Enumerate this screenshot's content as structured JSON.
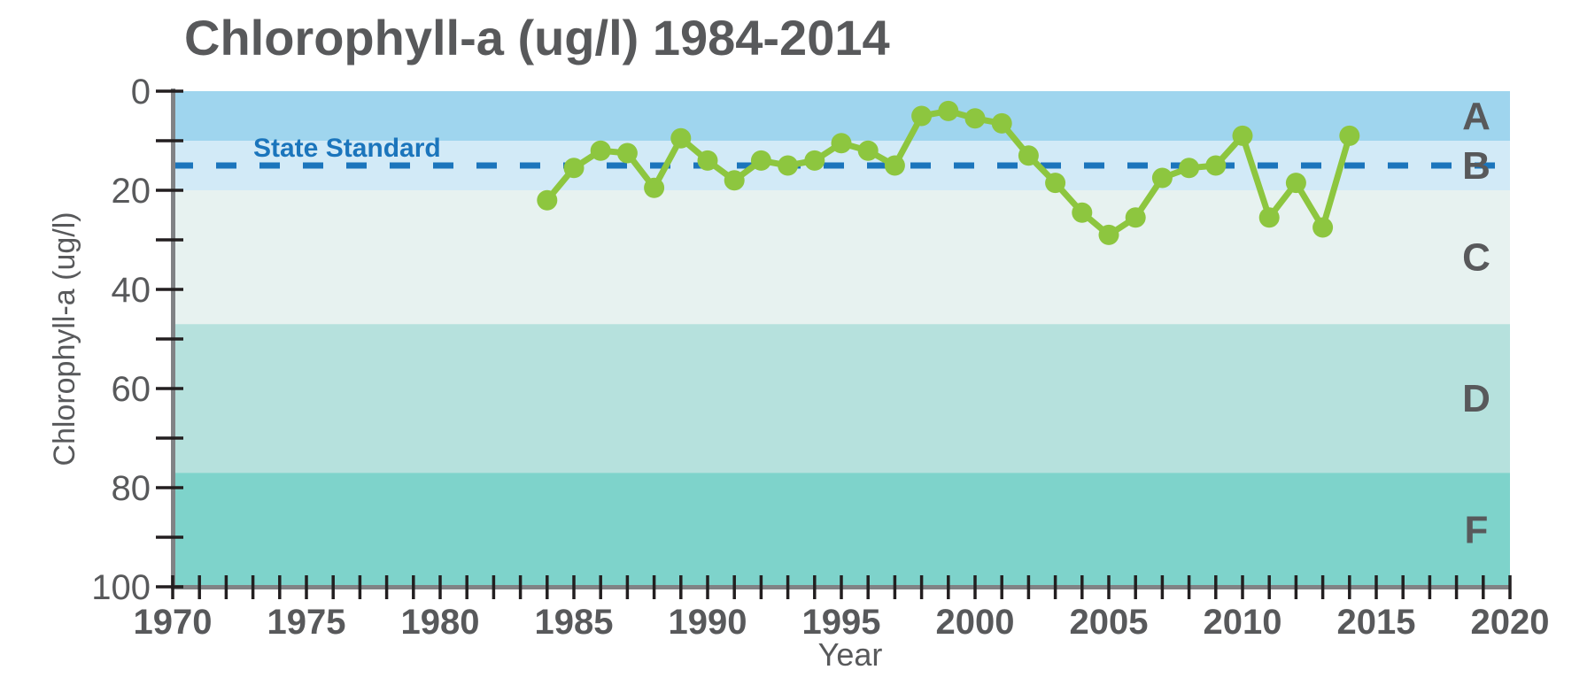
{
  "figure": {
    "background_color": "#ffffff",
    "text_color": "#58595b",
    "axis_line_color": "#808285",
    "tick_color": "#231f20"
  },
  "chart_data": {
    "type": "line",
    "title": "Chlorophyll-a (ug/l) 1984-2014",
    "xlabel": "Year",
    "ylabel": "Chlorophyll-a (ug/l)",
    "xlim": [
      1970,
      2020
    ],
    "ylim": [
      0,
      100
    ],
    "y_axis_inverted_note": "0 at top, 100 at bottom",
    "grid": false,
    "legend": "none",
    "x_major_ticks": [
      1970,
      1975,
      1980,
      1985,
      1990,
      1995,
      2000,
      2005,
      2010,
      2015,
      2020
    ],
    "x_minor_tick_step": 1,
    "y_major_ticks": [
      0,
      20,
      40,
      60,
      80,
      100
    ],
    "y_minor_tick_step": 10,
    "reference_line": {
      "label": "State Standard",
      "value": 15,
      "color": "#1b75bc",
      "style": "dashed"
    },
    "bands": [
      {
        "label": "A",
        "from": 0,
        "to": 10,
        "color": "#9fd5ee"
      },
      {
        "label": "B",
        "from": 10,
        "to": 20,
        "color": "#d2eaf7"
      },
      {
        "label": "C",
        "from": 20,
        "to": 47,
        "color": "#e7f2f0"
      },
      {
        "label": "D",
        "from": 47,
        "to": 77,
        "color": "#b6e1dd"
      },
      {
        "label": "F",
        "from": 77,
        "to": 100,
        "color": "#7ed3cb"
      }
    ],
    "series": [
      {
        "name": "Chlorophyll-a (ug/l)",
        "color": "#8dc63f",
        "x": [
          1984,
          1985,
          1986,
          1987,
          1988,
          1989,
          1990,
          1991,
          1992,
          1993,
          1994,
          1995,
          1996,
          1997,
          1998,
          1999,
          2000,
          2001,
          2002,
          2003,
          2004,
          2005,
          2006,
          2007,
          2008,
          2009,
          2010,
          2011,
          2012,
          2013,
          2014
        ],
        "values": [
          22,
          15.5,
          12,
          12.5,
          19.5,
          9.5,
          14,
          18,
          14,
          15,
          14,
          10.5,
          12,
          15,
          5,
          4,
          5.5,
          6.5,
          13,
          18.5,
          24.5,
          29,
          25.5,
          17.5,
          15.5,
          15,
          9,
          25.5,
          18.5,
          27.5,
          9
        ]
      }
    ]
  }
}
